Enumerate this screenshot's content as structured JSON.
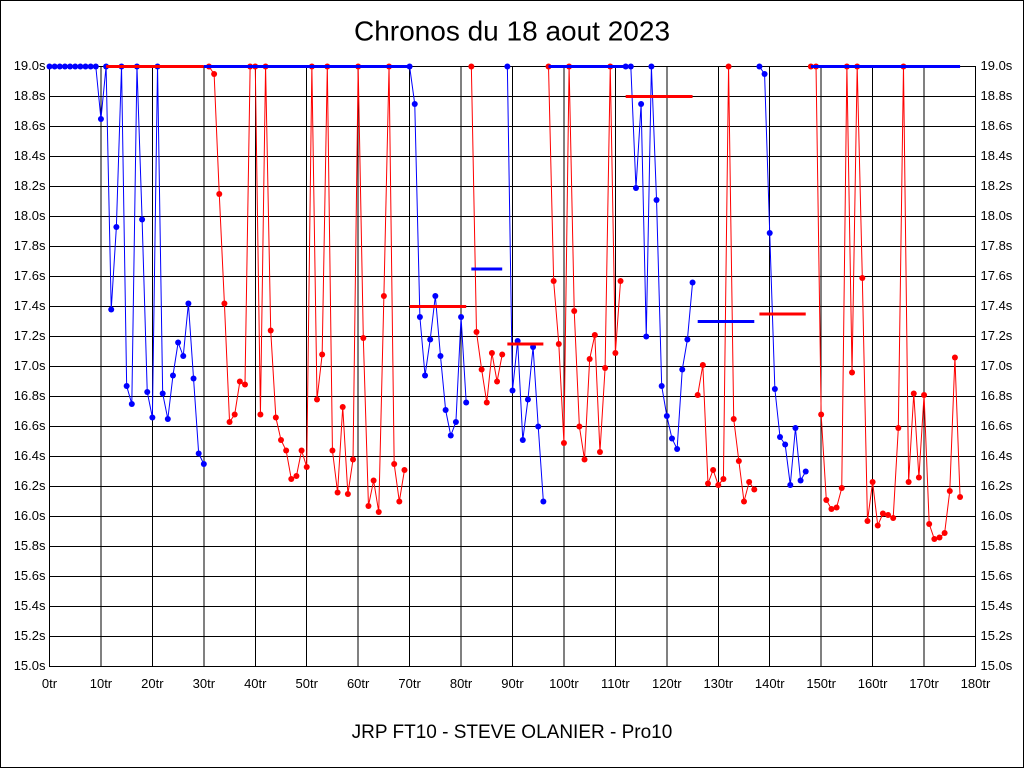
{
  "chart_data": {
    "type": "line",
    "title": "Chronos du 18 aout 2023",
    "footer": "JRP FT10 - STEVE OLANIER - Pro10",
    "xlim": [
      0,
      180
    ],
    "ylim": [
      15,
      19
    ],
    "grid": true,
    "right_axis_labels": true,
    "xticks": [
      {
        "value": 0,
        "label": "0tr"
      },
      {
        "value": 10,
        "label": "10tr"
      },
      {
        "value": 20,
        "label": "20tr"
      },
      {
        "value": 30,
        "label": "30tr"
      },
      {
        "value": 40,
        "label": "40tr"
      },
      {
        "value": 50,
        "label": "50tr"
      },
      {
        "value": 60,
        "label": "60tr"
      },
      {
        "value": 70,
        "label": "70tr"
      },
      {
        "value": 80,
        "label": "80tr"
      },
      {
        "value": 90,
        "label": "90tr"
      },
      {
        "value": 100,
        "label": "100tr"
      },
      {
        "value": 110,
        "label": "110tr"
      },
      {
        "value": 120,
        "label": "120tr"
      },
      {
        "value": 130,
        "label": "130tr"
      },
      {
        "value": 140,
        "label": "140tr"
      },
      {
        "value": 150,
        "label": "150tr"
      },
      {
        "value": 160,
        "label": "160tr"
      },
      {
        "value": 170,
        "label": "170tr"
      },
      {
        "value": 180,
        "label": "180tr"
      }
    ],
    "yticks": [
      {
        "value": 15.0,
        "label": "15.0s"
      },
      {
        "value": 15.2,
        "label": "15.2s"
      },
      {
        "value": 15.4,
        "label": "15.4s"
      },
      {
        "value": 15.6,
        "label": "15.6s"
      },
      {
        "value": 15.8,
        "label": "15.8s"
      },
      {
        "value": 16.0,
        "label": "16.0s"
      },
      {
        "value": 16.2,
        "label": "16.2s"
      },
      {
        "value": 16.4,
        "label": "16.4s"
      },
      {
        "value": 16.6,
        "label": "16.6s"
      },
      {
        "value": 16.8,
        "label": "16.8s"
      },
      {
        "value": 17.0,
        "label": "17.0s"
      },
      {
        "value": 17.2,
        "label": "17.2s"
      },
      {
        "value": 17.4,
        "label": "17.4s"
      },
      {
        "value": 17.6,
        "label": "17.6s"
      },
      {
        "value": 17.8,
        "label": "17.8s"
      },
      {
        "value": 18.0,
        "label": "18.0s"
      },
      {
        "value": 18.2,
        "label": "18.2s"
      },
      {
        "value": 18.4,
        "label": "18.4s"
      },
      {
        "value": 18.6,
        "label": "18.6s"
      },
      {
        "value": 18.8,
        "label": "18.8s"
      },
      {
        "value": 19.0,
        "label": "19.0s"
      }
    ],
    "series": [
      {
        "color": "#0000ff",
        "x": [
          0,
          1,
          2,
          3,
          4,
          5,
          6,
          7,
          8,
          9,
          10,
          11,
          12,
          13,
          14,
          15,
          16,
          17,
          18,
          19,
          20,
          21,
          22,
          23,
          24,
          25,
          26,
          27,
          28,
          29,
          30
        ],
        "values": [
          19,
          19,
          19,
          19,
          19,
          19,
          19,
          19,
          19,
          19,
          18.65,
          19,
          17.38,
          17.93,
          19,
          16.87,
          16.75,
          19,
          17.98,
          16.83,
          16.66,
          19,
          16.82,
          16.65,
          16.94,
          17.16,
          17.07,
          17.42,
          16.92,
          16.42,
          16.35
        ]
      },
      {
        "color": "#ff0000",
        "x": [
          31,
          32,
          33,
          34,
          35,
          36,
          37,
          38,
          39,
          40,
          41,
          42,
          43,
          44,
          45,
          46,
          47,
          48,
          49,
          50,
          51,
          52,
          53,
          54,
          55,
          56,
          57,
          58,
          59,
          60,
          61,
          62,
          63,
          64,
          65,
          66,
          67,
          68,
          69
        ],
        "values": [
          19,
          18.95,
          18.15,
          17.42,
          16.63,
          16.68,
          16.9,
          16.88,
          19,
          19,
          16.68,
          19,
          17.24,
          16.66,
          16.51,
          16.44,
          16.25,
          16.27,
          16.44,
          16.33,
          19,
          16.78,
          17.08,
          19,
          16.44,
          16.16,
          16.73,
          16.15,
          16.38,
          19,
          17.19,
          16.07,
          16.24,
          16.03,
          17.47,
          19,
          16.35,
          16.1,
          16.31
        ]
      },
      {
        "color": "#0000ff",
        "x": [
          70,
          71,
          72,
          73,
          74,
          75,
          76,
          77,
          78,
          79,
          80,
          81
        ],
        "values": [
          19,
          18.75,
          17.33,
          16.94,
          17.18,
          17.47,
          17.07,
          16.71,
          16.54,
          16.63,
          17.33,
          16.76
        ]
      },
      {
        "color": "#ff0000",
        "x": [
          82,
          83,
          84,
          85,
          86,
          87,
          88
        ],
        "values": [
          19,
          17.23,
          16.98,
          16.76,
          17.09,
          16.9,
          17.08
        ]
      },
      {
        "color": "#0000ff",
        "x": [
          89,
          90,
          91,
          92,
          93,
          94,
          95,
          96
        ],
        "values": [
          19,
          16.84,
          17.17,
          16.51,
          16.78,
          17.13,
          16.6,
          16.1
        ]
      },
      {
        "color": "#ff0000",
        "x": [
          97,
          98,
          99,
          100,
          101,
          102,
          103,
          104,
          105,
          106,
          107,
          108,
          109,
          110,
          111
        ],
        "values": [
          19,
          17.57,
          17.15,
          16.49,
          19,
          17.37,
          16.6,
          16.38,
          17.05,
          17.21,
          16.43,
          16.99,
          19,
          17.09,
          17.57
        ]
      },
      {
        "color": "#0000ff",
        "x": [
          112,
          113,
          114,
          115,
          116,
          117,
          118,
          119,
          120,
          121,
          122,
          123,
          124,
          125
        ],
        "values": [
          19,
          19,
          18.19,
          18.75,
          17.2,
          19,
          18.11,
          16.87,
          16.67,
          16.52,
          16.45,
          16.98,
          17.18,
          17.56
        ]
      },
      {
        "color": "#ff0000",
        "x": [
          126,
          127,
          128,
          129,
          130,
          131,
          132,
          133,
          134,
          135,
          136,
          137
        ],
        "values": [
          16.81,
          17.01,
          16.22,
          16.31,
          16.21,
          16.25,
          19,
          16.65,
          16.37,
          16.1,
          16.23,
          16.18
        ]
      },
      {
        "color": "#0000ff",
        "x": [
          138,
          139,
          140,
          141,
          142,
          143,
          144,
          145,
          146,
          147
        ],
        "values": [
          19,
          18.95,
          17.89,
          16.85,
          16.53,
          16.48,
          16.21,
          16.59,
          16.24,
          16.3
        ]
      },
      {
        "color": "#ff0000",
        "x": [
          148,
          149,
          150,
          151,
          152,
          153,
          154,
          155,
          156,
          157,
          158,
          159,
          160,
          161,
          162,
          163,
          164,
          165,
          166,
          167,
          168,
          169,
          170,
          171,
          172,
          173,
          174,
          175,
          176,
          177
        ],
        "values": [
          19,
          19,
          16.68,
          16.11,
          16.05,
          16.06,
          16.19,
          19,
          16.96,
          19,
          17.59,
          15.97,
          16.23,
          15.94,
          16.02,
          16.01,
          15.99,
          16.59,
          19,
          16.23,
          16.82,
          16.26,
          16.81,
          15.95,
          15.85,
          15.86,
          15.89,
          16.17,
          17.06,
          16.13
        ]
      }
    ],
    "average_lines": [
      {
        "color": "#ff0000",
        "x": [
          11,
          30
        ],
        "value": 19
      },
      {
        "color": "#0000ff",
        "x": [
          30,
          70
        ],
        "value": 19
      },
      {
        "color": "#ff0000",
        "x": [
          70,
          81
        ],
        "value": 17.4
      },
      {
        "color": "#0000ff",
        "x": [
          82,
          88
        ],
        "value": 17.65
      },
      {
        "color": "#ff0000",
        "x": [
          89,
          96
        ],
        "value": 17.15
      },
      {
        "color": "#0000ff",
        "x": [
          97,
          112
        ],
        "value": 19
      },
      {
        "color": "#ff0000",
        "x": [
          112,
          125
        ],
        "value": 18.8
      },
      {
        "color": "#0000ff",
        "x": [
          126,
          137
        ],
        "value": 17.3
      },
      {
        "color": "#ff0000",
        "x": [
          138,
          147
        ],
        "value": 17.35
      },
      {
        "color": "#0000ff",
        "x": [
          148,
          177
        ],
        "value": 19
      }
    ]
  }
}
